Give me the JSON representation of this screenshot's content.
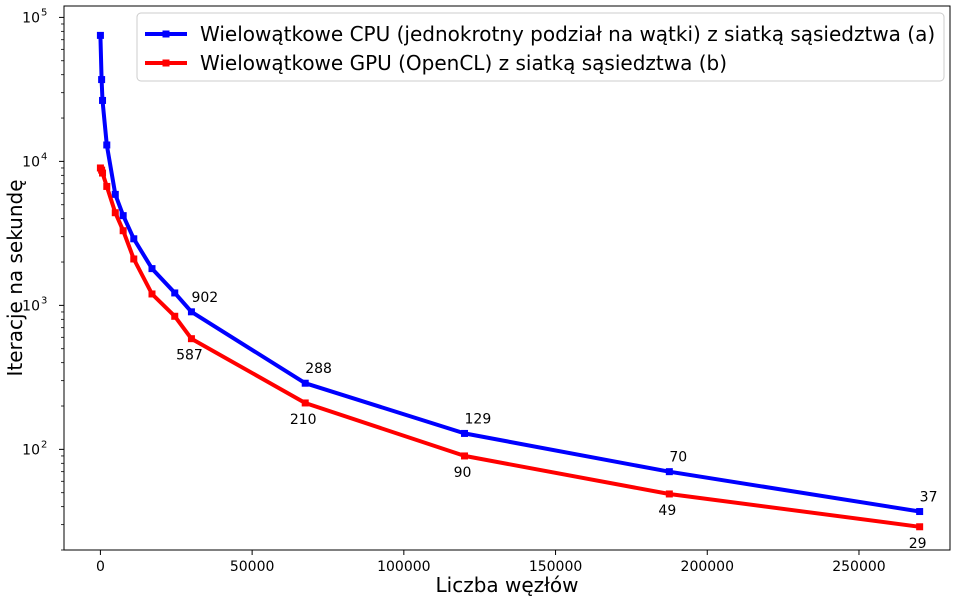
{
  "chart_data": {
    "type": "line",
    "title": "",
    "xlabel": "Liczba węzłów",
    "ylabel": "Iteracje na sekundę",
    "xlim": [
      -12000,
      280000
    ],
    "ylim": [
      20,
      120000
    ],
    "yscale": "log",
    "grid": false,
    "legend_position": "top-right",
    "x_ticks": [
      0,
      50000,
      100000,
      150000,
      200000,
      250000
    ],
    "x_tick_labels": [
      "0",
      "50000",
      "100000",
      "150000",
      "200000",
      "250000"
    ],
    "y_ticks": [
      100,
      1000,
      10000,
      100000
    ],
    "y_tick_base": "10",
    "y_tick_exponents": [
      "2",
      "3",
      "4",
      "5"
    ],
    "series": [
      {
        "name": "Wielowątkowe CPU (jednokrotny podział na wątki) z siatką sąsiedztwa (a)",
        "color": "#0000ff",
        "x": [
          0,
          400,
          700,
          2100,
          4900,
          7500,
          11000,
          17000,
          24500,
          30000,
          67500,
          120000,
          187500,
          270000
        ],
        "y": [
          75000,
          37000,
          26500,
          13000,
          5900,
          4200,
          2900,
          1800,
          1220,
          902,
          288,
          129,
          70,
          37
        ],
        "labels": [
          {
            "x": 30000,
            "y": 902,
            "text": "902",
            "pos": "above"
          },
          {
            "x": 67500,
            "y": 288,
            "text": "288",
            "pos": "above"
          },
          {
            "x": 120000,
            "y": 129,
            "text": "129",
            "pos": "above"
          },
          {
            "x": 187500,
            "y": 70,
            "text": "70",
            "pos": "above"
          },
          {
            "x": 270000,
            "y": 37,
            "text": "37",
            "pos": "above"
          }
        ]
      },
      {
        "name": "Wielowątkowe GPU (OpenCL) z siatką sąsiedztwa (b)",
        "color": "#ff0000",
        "x": [
          0,
          400,
          700,
          2100,
          4900,
          7500,
          11000,
          17000,
          24500,
          30000,
          67500,
          120000,
          187500,
          270000
        ],
        "y": [
          9000,
          8700,
          8300,
          6700,
          4400,
          3300,
          2100,
          1200,
          840,
          587,
          210,
          90,
          49,
          29
        ],
        "labels": [
          {
            "x": 30000,
            "y": 587,
            "text": "587",
            "pos": "below"
          },
          {
            "x": 67500,
            "y": 210,
            "text": "210",
            "pos": "below"
          },
          {
            "x": 120000,
            "y": 90,
            "text": "90",
            "pos": "below"
          },
          {
            "x": 187500,
            "y": 49,
            "text": "49",
            "pos": "below"
          },
          {
            "x": 270000,
            "y": 29,
            "text": "29",
            "pos": "below"
          }
        ]
      }
    ]
  }
}
